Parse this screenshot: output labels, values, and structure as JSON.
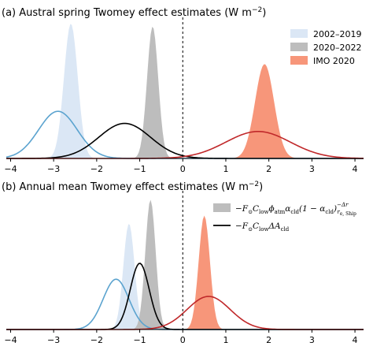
{
  "chart_data": [
    {
      "panel": "a",
      "type": "area",
      "title": "(a) Austral spring Twomey effect estimates (W m",
      "title_sup": "−2",
      "title_end": ")",
      "xlim": [
        -4.1,
        4.2
      ],
      "xticks": [
        -4,
        -3,
        -2,
        -1,
        0,
        1,
        2,
        3,
        4
      ],
      "xtick_labels": [
        "−4",
        "−3",
        "−2",
        "−1",
        "0",
        "1",
        "2",
        "3",
        "4"
      ],
      "legend_position": "top-right",
      "zero_line": true,
      "series": [
        {
          "name": "2002–2019",
          "style": "fill",
          "color": "#dbe7f5",
          "dist": {
            "mean": -2.6,
            "sd": 0.16,
            "peak": 1.0
          }
        },
        {
          "name": "2020–2022",
          "style": "fill",
          "color": "#bdbdbd",
          "dist": {
            "mean": -0.7,
            "sd": 0.13,
            "peak": 0.98
          }
        },
        {
          "name": "IMO 2020",
          "style": "fill",
          "color": "#f7967a",
          "dist": {
            "mean": 1.9,
            "sd": 0.22,
            "peak": 0.7
          }
        },
        {
          "style": "line",
          "color": "#5ba3cf",
          "dist": {
            "mean": -2.9,
            "sd": 0.45,
            "peak": 0.35
          }
        },
        {
          "style": "line",
          "color": "#000000",
          "dist": {
            "mean": -1.35,
            "sd": 0.6,
            "peak": 0.26
          }
        },
        {
          "style": "line",
          "color": "#c0282a",
          "dist": {
            "mean": 1.75,
            "sd": 0.75,
            "peak": 0.2
          }
        }
      ]
    },
    {
      "panel": "b",
      "type": "area",
      "title": "(b) Annual mean Twomey effect estimates (W m",
      "title_sup": "−2",
      "title_end": ")",
      "xlim": [
        -4.1,
        4.2
      ],
      "xticks": [
        -4,
        -3,
        -2,
        -1,
        0,
        1,
        2,
        3,
        4
      ],
      "xtick_labels": [
        "−4",
        "−3",
        "−2",
        "−1",
        "0",
        "1",
        "2",
        "3",
        "4"
      ],
      "legend_position": "top-right",
      "zero_line": true,
      "legend": [
        {
          "style": "fill",
          "color": "#bdbdbd",
          "label_parts": [
            "−F",
            "⊙",
            "C",
            "low",
            "ϕ",
            "atm",
            "α",
            "cld",
            "(1 − α",
            "cld",
            ")",
            "−Δr",
            "r",
            "e, Ship"
          ]
        },
        {
          "style": "line",
          "color": "#000000",
          "label_parts": [
            "−F",
            "⊙",
            "C",
            "low",
            "ΔA",
            "cld"
          ]
        }
      ],
      "series": [
        {
          "style": "fill",
          "color": "#dbe7f5",
          "dist": {
            "mean": -1.25,
            "sd": 0.13,
            "peak": 0.8
          }
        },
        {
          "style": "fill",
          "color": "#bdbdbd",
          "dist": {
            "mean": -0.75,
            "sd": 0.12,
            "peak": 0.98
          }
        },
        {
          "style": "fill",
          "color": "#f7967a",
          "dist": {
            "mean": 0.5,
            "sd": 0.13,
            "peak": 0.86
          }
        },
        {
          "style": "line",
          "color": "#5ba3cf",
          "dist": {
            "mean": -1.55,
            "sd": 0.3,
            "peak": 0.38
          }
        },
        {
          "style": "line",
          "color": "#000000",
          "dist": {
            "mean": -1.0,
            "sd": 0.22,
            "peak": 0.5
          }
        },
        {
          "style": "line",
          "color": "#c0282a",
          "dist": {
            "mean": 0.6,
            "sd": 0.5,
            "peak": 0.25
          }
        }
      ]
    }
  ]
}
